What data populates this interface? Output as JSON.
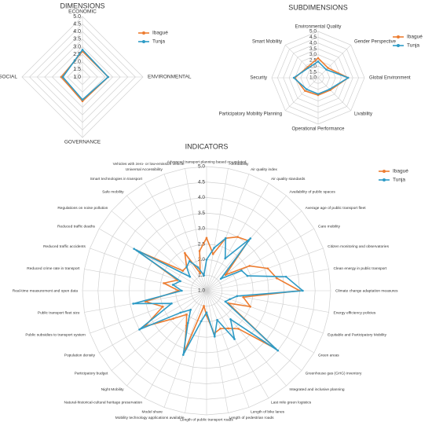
{
  "chart_data": [
    {
      "type": "radar",
      "title": "DIMENSIONS",
      "categories": [
        "ECONOMIC",
        "ENVIRONMENTAL",
        "GOVERNANCE",
        "SOCIAL"
      ],
      "series": [
        {
          "name": "Ibagué",
          "color": "#ed7d31",
          "values": [
            2.7,
            2.7,
            2.6,
            2.4
          ]
        },
        {
          "name": "Tunja",
          "color": "#2e9bc6",
          "values": [
            2.8,
            2.7,
            2.5,
            2.3
          ]
        }
      ],
      "ylim": [
        1,
        5
      ],
      "yticks": [
        {
          "value": 1,
          "label": "1.0"
        },
        1.5,
        {
          "value": 2,
          "label": "2.0"
        },
        2.5,
        {
          "value": 3,
          "label": "3.0"
        },
        3.5,
        {
          "value": 4,
          "label": "4.0"
        },
        4.5,
        {
          "value": 5,
          "label": "5.0"
        }
      ],
      "grid": true,
      "legend": "upper right"
    },
    {
      "type": "radar",
      "title": "SUBDIMENSIONS",
      "categories": [
        "Environmental Quality",
        "Gender Perspective",
        "Global Environment",
        "Livability",
        "Operational Performance",
        "Participatory Mobility Planning",
        "Security",
        "Smart Mobility"
      ],
      "series": [
        {
          "name": "Ibagué",
          "color": "#ed7d31",
          "values": [
            2.7,
            2.2,
            3.6,
            2.5,
            2.5,
            2.6,
            3.0,
            2.3
          ]
        },
        {
          "name": "Tunja",
          "color": "#2e9bc6",
          "values": [
            2.4,
            2.0,
            3.6,
            2.4,
            2.4,
            2.4,
            3.1,
            2.2
          ]
        }
      ],
      "ylim": [
        1,
        5
      ],
      "yticks": [
        {
          "value": 1,
          "label": "1.0"
        },
        1.5,
        {
          "value": 2,
          "label": "2.0"
        },
        2.5,
        {
          "value": 3,
          "label": "3.0"
        },
        3.5,
        {
          "value": 4,
          "label": "4.0"
        },
        4.5,
        {
          "value": 5,
          "label": "5.0"
        }
      ],
      "grid": true,
      "legend": "upper right"
    },
    {
      "type": "radar",
      "title": "INDICATORS",
      "categories": [
        "Advanced transport planning based on updated",
        "Affordability",
        "Air quality index",
        "Air quality standards",
        "Availability of public spaces",
        "Average age of public transport fleet",
        "Care mobility",
        "Citizen monitoring and observatories",
        "Clean energy in public transport",
        "Climate change adaptation measures",
        "Energy efficiency policies",
        "Equitable and Participatory Mobility",
        "Green areas",
        "Greenhouse gas (GHG) inventory",
        "Integrated and inclusive planning",
        "Last mile green logistics",
        "Length of bike lanes",
        "Length of pedestrian roads",
        "Length of public transport roads",
        "Mobility technology applications available",
        "Model share",
        "Natural-historical-cultural heritage preservation",
        "Night Mobility",
        "Participatory budget",
        "Population density",
        "Public subsidies to transport system",
        "Public transport fleet size",
        "Real-time measurement and open data",
        "Reduced crime rate in transport",
        "Reduced traffic accidents",
        "Reduced traffic deaths",
        "Regulations on noise pollution",
        "Safe mobility",
        "Smart technologies in transport",
        "Universal Accessibility",
        "Vehicles with zero- or low-emission vehicle"
      ],
      "series": [
        {
          "name": "Ibagué",
          "color": "#ed7d31",
          "values": [
            2.7,
            2.2,
            2.8,
            3.0,
            3.1,
            1.8,
            2.6,
            3.1,
            3.3,
            4.0,
            2.2,
            2.5,
            1.8,
            3.9,
            2.6,
            2.4,
            2.3,
            2.4,
            1.8,
            1.5,
            3.1,
            2.3,
            2.0,
            2.4,
            3.3,
            2.5,
            3.0,
            1.9,
            2.4,
            2.0,
            3.6,
            2.0,
            2.0,
            2.4,
            1.6,
            2.3
          ]
        },
        {
          "name": "Tunja",
          "color": "#2e9bc6",
          "values": [
            2.0,
            2.4,
            2.8,
            2.2,
            3.2,
            1.6,
            2.3,
            2.4,
            3.6,
            4.1,
            2.0,
            1.8,
            1.7,
            4.0,
            2.2,
            2.8,
            2.0,
            2.5,
            1.7,
            2.0,
            3.2,
            2.2,
            1.8,
            2.1,
            3.5,
            2.2,
            3.4,
            1.8,
            2.1,
            1.9,
            3.7,
            1.7,
            2.0,
            2.1,
            1.8,
            1.5
          ]
        }
      ],
      "ylim": [
        1,
        5
      ],
      "yticks": [
        {
          "value": 1,
          "label": "1.0"
        },
        1.5,
        {
          "value": 2,
          "label": "2.0"
        },
        2.5,
        {
          "value": 3,
          "label": "3.0"
        },
        3.5,
        {
          "value": 4,
          "label": "4.0"
        },
        4.5,
        {
          "value": 5,
          "label": "5.0"
        }
      ],
      "grid": true,
      "legend": "upper right"
    }
  ]
}
